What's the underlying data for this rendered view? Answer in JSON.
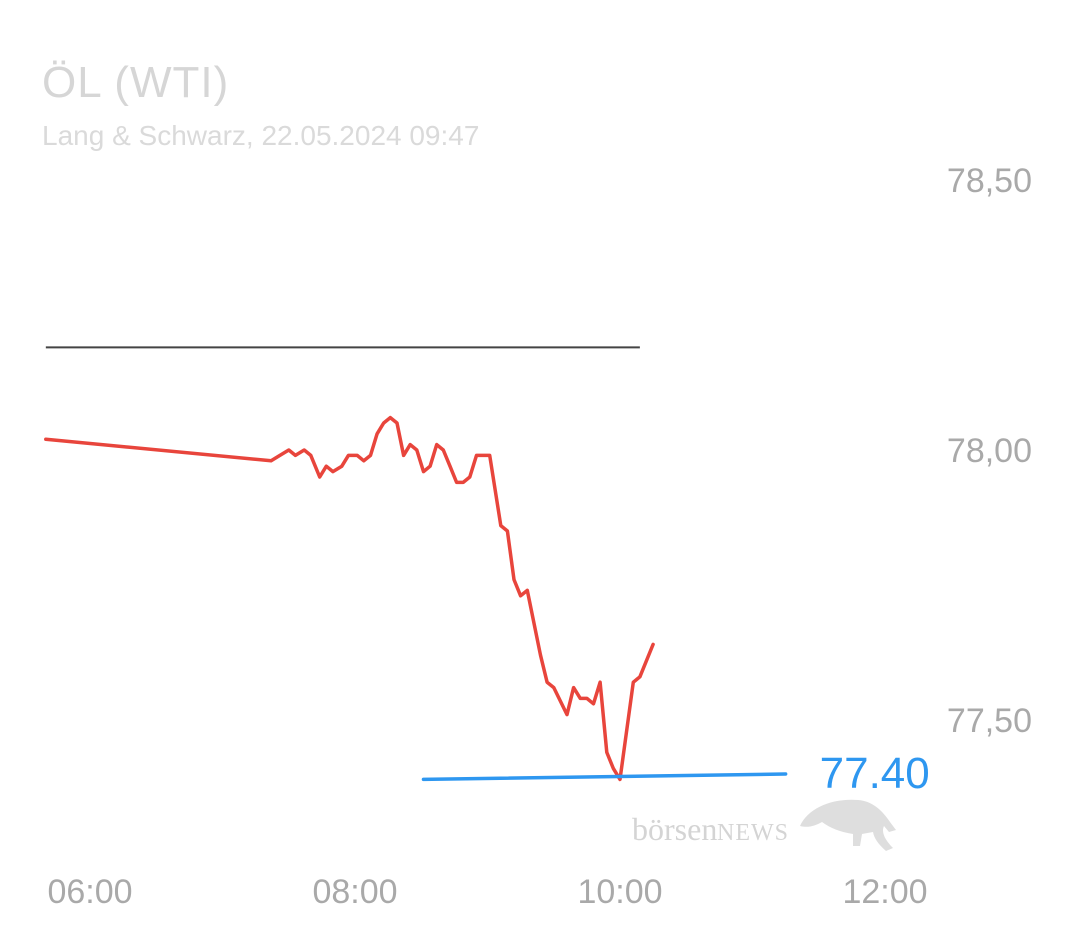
{
  "header": {
    "title": "ÖL (WTI)",
    "subtitle": "Lang & Schwarz, 22.05.2024 09:47"
  },
  "watermark": {
    "text_main": "börsen",
    "text_small": "NEWS"
  },
  "colors": {
    "price_line": "#e8453c",
    "support_line": "#2e97f0",
    "resistance_line": "#444444",
    "tick_text": "#a9a9a9"
  },
  "chart_data": {
    "type": "line",
    "x_axis": {
      "ticks": [
        "06:00",
        "08:00",
        "10:00",
        "12:00"
      ],
      "range": [
        "05:40",
        "12:30"
      ]
    },
    "y_axis": {
      "ticks": [
        "78,50",
        "78,00",
        "77,50"
      ],
      "tick_values": [
        78.5,
        78.0,
        77.5
      ],
      "range": [
        77.25,
        78.75
      ],
      "position": "right"
    },
    "series": [
      {
        "values": [
          [
            "05:40",
            78.02
          ],
          [
            "07:22",
            77.98
          ],
          [
            "07:26",
            77.99
          ],
          [
            "07:30",
            78.0
          ],
          [
            "07:33",
            77.99
          ],
          [
            "07:37",
            78.0
          ],
          [
            "07:40",
            77.99
          ],
          [
            "07:44",
            77.95
          ],
          [
            "07:47",
            77.97
          ],
          [
            "07:50",
            77.96
          ],
          [
            "07:54",
            77.97
          ],
          [
            "07:57",
            77.99
          ],
          [
            "08:01",
            77.99
          ],
          [
            "08:04",
            77.98
          ],
          [
            "08:07",
            77.99
          ],
          [
            "08:10",
            78.03
          ],
          [
            "08:13",
            78.05
          ],
          [
            "08:16",
            78.06
          ],
          [
            "08:19",
            78.05
          ],
          [
            "08:22",
            77.99
          ],
          [
            "08:25",
            78.01
          ],
          [
            "08:28",
            78.0
          ],
          [
            "08:31",
            77.96
          ],
          [
            "08:34",
            77.97
          ],
          [
            "08:37",
            78.01
          ],
          [
            "08:40",
            78.0
          ],
          [
            "08:43",
            77.97
          ],
          [
            "08:46",
            77.94
          ],
          [
            "08:49",
            77.94
          ],
          [
            "08:52",
            77.95
          ],
          [
            "08:55",
            77.99
          ],
          [
            "08:58",
            77.99
          ],
          [
            "09:01",
            77.99
          ],
          [
            "09:06",
            77.86
          ],
          [
            "09:09",
            77.85
          ],
          [
            "09:12",
            77.76
          ],
          [
            "09:15",
            77.73
          ],
          [
            "09:18",
            77.74
          ],
          [
            "09:24",
            77.62
          ],
          [
            "09:27",
            77.57
          ],
          [
            "09:30",
            77.56
          ],
          [
            "09:36",
            77.51
          ],
          [
            "09:39",
            77.56
          ],
          [
            "09:42",
            77.54
          ],
          [
            "09:45",
            77.54
          ],
          [
            "09:48",
            77.53
          ],
          [
            "09:51",
            77.57
          ],
          [
            "09:54",
            77.44
          ],
          [
            "09:57",
            77.41
          ],
          [
            "10:00",
            77.39
          ],
          [
            "10:06",
            77.57
          ],
          [
            "10:09",
            77.58
          ],
          [
            "10:15",
            77.64
          ]
        ]
      }
    ],
    "annotations": {
      "support_line": {
        "label": "77.40",
        "start": [
          "08:31",
          77.39
        ],
        "end": [
          "11:15",
          77.4
        ]
      },
      "resistance_line": {
        "start": [
          "05:40",
          78.19
        ],
        "end": [
          "10:09",
          78.19
        ]
      }
    },
    "grid": false,
    "legend": "none"
  }
}
